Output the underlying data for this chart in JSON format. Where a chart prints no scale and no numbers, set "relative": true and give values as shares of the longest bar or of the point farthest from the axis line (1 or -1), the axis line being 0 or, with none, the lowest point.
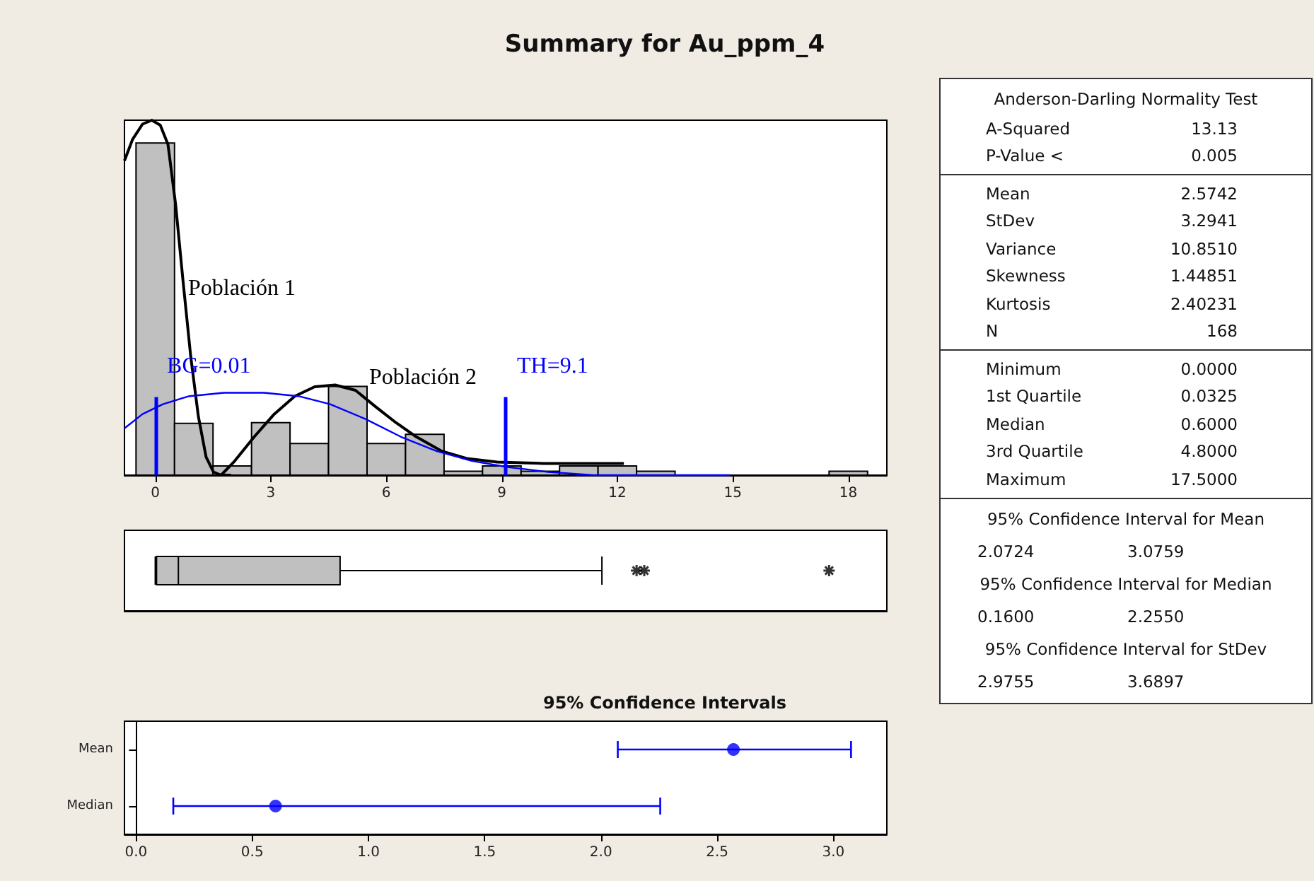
{
  "chart_data": [
    {
      "type": "histogram",
      "title": "Summary for Au_ppm_4",
      "relative": true,
      "color": "#c0c0c0",
      "bins": [
        -0.5,
        0.5,
        1.5,
        2.5,
        3.5,
        4.5,
        5.5,
        6.5,
        7.5,
        8.5,
        9.5,
        10.5,
        11.5,
        12.5,
        13.5,
        14.5,
        15.5,
        16.5,
        17.5,
        18.5
      ],
      "values": [
        0.936,
        0.146,
        0.026,
        0.148,
        0.089,
        0.25,
        0.089,
        0.115,
        0.011,
        0.026,
        0.011,
        0.026,
        0.026,
        0.011,
        0,
        0,
        0,
        0,
        0.011
      ],
      "xlim": [
        -0.8,
        19
      ],
      "xticks": [
        0,
        3,
        6,
        9,
        12,
        15,
        18
      ],
      "series": [
        {
          "type": "line",
          "color": "#000000",
          "x": [
            -0.8,
            -0.59,
            -0.33,
            -0.09,
            0.13,
            0.33,
            0.53,
            0.72,
            0.92,
            1.12,
            1.32,
            1.51,
            1.71,
            1.97
          ],
          "values": [
            0.886,
            0.946,
            0.989,
            1,
            0.986,
            0.932,
            0.761,
            0.548,
            0.335,
            0.165,
            0.051,
            0.009,
            0,
            0
          ]
        },
        {
          "type": "line",
          "color": "#000000",
          "x": [
            1.71,
            2.04,
            2.57,
            3.09,
            3.62,
            4.14,
            4.67,
            5.2,
            5.72,
            6.25,
            6.78,
            7.43,
            8.09,
            8.88,
            10.07,
            12.17
          ],
          "values": [
            0,
            0.037,
            0.108,
            0.172,
            0.222,
            0.249,
            0.254,
            0.239,
            0.193,
            0.148,
            0.108,
            0.068,
            0.047,
            0.037,
            0.033,
            0.033
          ]
        },
        {
          "type": "line",
          "color": "#0000ff",
          "x": [
            -0.8,
            -0.33,
            0.2,
            0.86,
            1.78,
            2.83,
            3.75,
            4.54,
            5.46,
            6.38,
            7.3,
            8.22,
            9.14,
            10.2,
            11.38,
            14.93
          ],
          "values": [
            0.132,
            0.172,
            0.2,
            0.222,
            0.232,
            0.232,
            0.222,
            0.2,
            0.158,
            0.108,
            0.068,
            0.04,
            0.023,
            0.009,
            0,
            0
          ]
        }
      ],
      "ref_lines": [
        {
          "axis": "x",
          "value": 0.01,
          "label": "BG=0.01",
          "color": "#0000ff"
        },
        {
          "axis": "x",
          "value": 9.1,
          "label": "TH=9.1",
          "color": "#0000ff"
        }
      ],
      "annotations": [
        "Población 1",
        "Población 2"
      ]
    },
    {
      "type": "box",
      "categories": [
        null
      ],
      "orientation": "horizontal",
      "color": "#c0c0c0",
      "xlim": [
        -0.8,
        19
      ],
      "boxes": [
        {
          "low": 0,
          "q1": 0.0325,
          "median": 0.6,
          "q3": 4.8,
          "high": 11.6,
          "outliers": [
            12.5,
            12.7,
            17.5
          ]
        }
      ]
    },
    {
      "type": "scatter",
      "title": "95% Confidence Intervals",
      "orientation": "horizontal",
      "marker": "circle",
      "color": "#0000ff",
      "categories": [
        "Mean",
        "Median"
      ],
      "values": [
        2.57,
        0.6
      ],
      "errors": [
        [
          2.0724,
          3.0759
        ],
        [
          0.16,
          2.255
        ]
      ],
      "xlim": [
        -0.05,
        3.23
      ],
      "xticks": [
        {
          "value": 0,
          "label": "0.0"
        },
        {
          "value": 0.5,
          "label": "0.5"
        },
        {
          "value": 1,
          "label": "1.0"
        },
        {
          "value": 1.5,
          "label": "1.5"
        },
        {
          "value": 2,
          "label": "2.0"
        },
        {
          "value": 2.5,
          "label": "2.5"
        },
        {
          "value": 3,
          "label": "3.0"
        }
      ]
    },
    {
      "type": "other",
      "title": "Anderson-Darling Normality Test",
      "annotations": [
        "A-Squared",
        "13.13",
        "P-Value <",
        "0.005",
        "Mean",
        "2.5742",
        "StDev",
        "3.2941",
        "Variance",
        "10.8510",
        "Skewness",
        "1.44851",
        "Kurtosis",
        "2.40231",
        "N",
        "168",
        "Minimum",
        "0.0000",
        "1st Quartile",
        "0.0325",
        "Median",
        "0.6000",
        "3rd Quartile",
        "4.8000",
        "Maximum",
        "17.5000",
        "95% Confidence Interval for Mean",
        "2.0724",
        "3.0759",
        "95% Confidence Interval for Median",
        "0.1600",
        "2.2550",
        "95% Confidence Interval for StDev",
        "2.9755",
        "3.6897"
      ]
    }
  ]
}
